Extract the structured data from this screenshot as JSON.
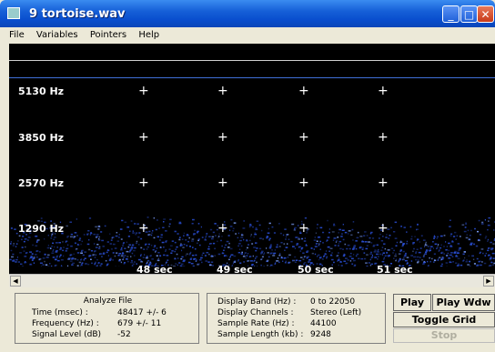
{
  "window": {
    "title": "9 tortoise.wav",
    "controls": [
      "minimize-icon",
      "maximize-icon",
      "close-icon"
    ]
  },
  "menu": {
    "items": [
      "File",
      "Variables",
      "Pointers",
      "Help"
    ]
  },
  "spectrogram": {
    "freq_labels": [
      "5130 Hz",
      "3850 Hz",
      "2570 Hz",
      "1290 Hz"
    ],
    "time_labels": [
      "48 sec",
      "49 sec",
      "50 sec",
      "51 sec"
    ],
    "background": "#000000",
    "noise_color": "#2a4fd6"
  },
  "analyze": {
    "title": "Analyze File",
    "time_label": "Time (msec) :",
    "time_value": "48417 +/- 6",
    "freq_label": "Frequency (Hz) :",
    "freq_value": "679  +/- 11",
    "signal_label": "Signal Level (dB)",
    "signal_value": "-52"
  },
  "display": {
    "band_label": "Display Band (Hz) :",
    "band_value": "0 to 22050",
    "channels_label": "Display Channels :",
    "channels_value": "Stereo (Left)",
    "rate_label": "Sample Rate (Hz) :",
    "rate_value": "44100",
    "length_label": "Sample Length (kb) :",
    "length_value": "9248"
  },
  "buttons": {
    "play": "Play",
    "play_wdw": "Play Wdw",
    "toggle_grid": "Toggle Grid",
    "stop": "Stop"
  }
}
